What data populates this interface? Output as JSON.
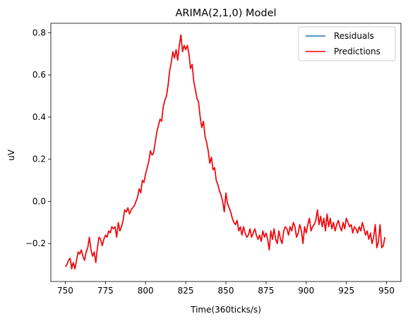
{
  "chart_data": {
    "type": "line",
    "title": "ARIMA(2,1,0) Model",
    "xlabel": "Time(360ticks/s)",
    "ylabel": "uV",
    "xlim": [
      741,
      959
    ],
    "ylim": [
      -0.38,
      0.845
    ],
    "x_ticks": [
      750,
      775,
      800,
      825,
      850,
      875,
      900,
      925,
      950
    ],
    "y_ticks": [
      -0.2,
      0.0,
      0.2,
      0.4,
      0.6,
      0.8
    ],
    "x_tick_labels": [
      "750",
      "775",
      "800",
      "825",
      "850",
      "875",
      "900",
      "925",
      "950"
    ],
    "y_tick_labels": [
      "−0.2",
      "0.0",
      "0.2",
      "0.4",
      "0.6",
      "0.8"
    ],
    "grid": false,
    "legend_position": "top-right",
    "series": [
      {
        "name": "Residuals",
        "color": "#1f77b4",
        "x": [
          750,
          751,
          752,
          753,
          754,
          755,
          756,
          757,
          758,
          759,
          760,
          761,
          762,
          763,
          764,
          765,
          766,
          767,
          768,
          769,
          770,
          771,
          772,
          773,
          774,
          775,
          776,
          777,
          778,
          779,
          780,
          781,
          782,
          783,
          784,
          785,
          786,
          787,
          788,
          789,
          790,
          791,
          792,
          793,
          794,
          795,
          796,
          797,
          798,
          799,
          800,
          801,
          802,
          803,
          804,
          805,
          806,
          807,
          808,
          809,
          810,
          811,
          812,
          813,
          814,
          815,
          816,
          817,
          818,
          819,
          820,
          821,
          822,
          823,
          824,
          825,
          826,
          827,
          828,
          829,
          830,
          831,
          832,
          833,
          834,
          835,
          836,
          837,
          838,
          839,
          840,
          841,
          842,
          843,
          844,
          845,
          846,
          847,
          848,
          849,
          850,
          851,
          852,
          853,
          854,
          855,
          856,
          857,
          858,
          859,
          860,
          861,
          862,
          863,
          864,
          865,
          866,
          867,
          868,
          869,
          870,
          871,
          872,
          873,
          874,
          875,
          876,
          877,
          878,
          879,
          880,
          881,
          882,
          883,
          884,
          885,
          886,
          887,
          888,
          889,
          890,
          891,
          892,
          893,
          894,
          895,
          896,
          897,
          898,
          899,
          900,
          901,
          902,
          903,
          904,
          905,
          906,
          907,
          908,
          909,
          910,
          911,
          912,
          913,
          914,
          915,
          916,
          917,
          918,
          919,
          920,
          921,
          922,
          923,
          924,
          925,
          926,
          927,
          928,
          929,
          930,
          931,
          932,
          933,
          934,
          935,
          936,
          937,
          938,
          939,
          940,
          941,
          942,
          943,
          944,
          945,
          946,
          947,
          948,
          949
        ],
        "y": [
          -0.31,
          -0.3,
          -0.28,
          -0.27,
          -0.31,
          -0.29,
          -0.32,
          -0.28,
          -0.24,
          -0.25,
          -0.23,
          -0.26,
          -0.28,
          -0.24,
          -0.22,
          -0.17,
          -0.23,
          -0.26,
          -0.24,
          -0.29,
          -0.22,
          -0.17,
          -0.18,
          -0.21,
          -0.18,
          -0.16,
          -0.17,
          -0.14,
          -0.15,
          -0.12,
          -0.13,
          -0.12,
          -0.17,
          -0.1,
          -0.14,
          -0.12,
          -0.09,
          -0.04,
          -0.05,
          -0.03,
          -0.06,
          -0.04,
          -0.03,
          -0.02,
          0.0,
          0.02,
          0.06,
          0.04,
          0.1,
          0.09,
          0.13,
          0.16,
          0.19,
          0.24,
          0.22,
          0.23,
          0.28,
          0.33,
          0.36,
          0.39,
          0.38,
          0.45,
          0.48,
          0.5,
          0.55,
          0.62,
          0.66,
          0.71,
          0.68,
          0.72,
          0.67,
          0.74,
          0.79,
          0.71,
          0.74,
          0.72,
          0.74,
          0.7,
          0.63,
          0.65,
          0.57,
          0.53,
          0.49,
          0.47,
          0.4,
          0.35,
          0.38,
          0.31,
          0.28,
          0.24,
          0.18,
          0.21,
          0.15,
          0.16,
          0.1,
          0.08,
          0.05,
          0.03,
          0.0,
          -0.05,
          0.04,
          -0.01,
          -0.03,
          -0.05,
          -0.08,
          -0.1,
          -0.11,
          -0.09,
          -0.14,
          -0.12,
          -0.16,
          -0.12,
          -0.15,
          -0.17,
          -0.16,
          -0.13,
          -0.17,
          -0.15,
          -0.13,
          -0.16,
          -0.18,
          -0.16,
          -0.19,
          -0.14,
          -0.17,
          -0.15,
          -0.18,
          -0.23,
          -0.14,
          -0.18,
          -0.13,
          -0.18,
          -0.2,
          -0.14,
          -0.18,
          -0.2,
          -0.14,
          -0.12,
          -0.13,
          -0.16,
          -0.12,
          -0.14,
          -0.1,
          -0.12,
          -0.17,
          -0.15,
          -0.11,
          -0.14,
          -0.2,
          -0.12,
          -0.15,
          -0.11,
          -0.08,
          -0.14,
          -0.12,
          -0.11,
          -0.09,
          -0.04,
          -0.11,
          -0.07,
          -0.12,
          -0.08,
          -0.14,
          -0.06,
          -0.12,
          -0.08,
          -0.13,
          -0.1,
          -0.14,
          -0.11,
          -0.09,
          -0.12,
          -0.14,
          -0.1,
          -0.13,
          -0.08,
          -0.1,
          -0.12,
          -0.11,
          -0.15,
          -0.12,
          -0.13,
          -0.15,
          -0.12,
          -0.14,
          -0.1,
          -0.13,
          -0.16,
          -0.14,
          -0.18,
          -0.15,
          -0.2,
          -0.17,
          -0.11,
          -0.22,
          -0.19,
          -0.11,
          -0.22,
          -0.21,
          -0.17
        ]
      },
      {
        "name": "Predictions",
        "color": "#ff0000",
        "x": [
          750,
          751,
          752,
          753,
          754,
          755,
          756,
          757,
          758,
          759,
          760,
          761,
          762,
          763,
          764,
          765,
          766,
          767,
          768,
          769,
          770,
          771,
          772,
          773,
          774,
          775,
          776,
          777,
          778,
          779,
          780,
          781,
          782,
          783,
          784,
          785,
          786,
          787,
          788,
          789,
          790,
          791,
          792,
          793,
          794,
          795,
          796,
          797,
          798,
          799,
          800,
          801,
          802,
          803,
          804,
          805,
          806,
          807,
          808,
          809,
          810,
          811,
          812,
          813,
          814,
          815,
          816,
          817,
          818,
          819,
          820,
          821,
          822,
          823,
          824,
          825,
          826,
          827,
          828,
          829,
          830,
          831,
          832,
          833,
          834,
          835,
          836,
          837,
          838,
          839,
          840,
          841,
          842,
          843,
          844,
          845,
          846,
          847,
          848,
          849,
          850,
          851,
          852,
          853,
          854,
          855,
          856,
          857,
          858,
          859,
          860,
          861,
          862,
          863,
          864,
          865,
          866,
          867,
          868,
          869,
          870,
          871,
          872,
          873,
          874,
          875,
          876,
          877,
          878,
          879,
          880,
          881,
          882,
          883,
          884,
          885,
          886,
          887,
          888,
          889,
          890,
          891,
          892,
          893,
          894,
          895,
          896,
          897,
          898,
          899,
          900,
          901,
          902,
          903,
          904,
          905,
          906,
          907,
          908,
          909,
          910,
          911,
          912,
          913,
          914,
          915,
          916,
          917,
          918,
          919,
          920,
          921,
          922,
          923,
          924,
          925,
          926,
          927,
          928,
          929,
          930,
          931,
          932,
          933,
          934,
          935,
          936,
          937,
          938,
          939,
          940,
          941,
          942,
          943,
          944,
          945,
          946,
          947,
          948,
          949
        ],
        "y": [
          -0.31,
          -0.3,
          -0.28,
          -0.27,
          -0.32,
          -0.29,
          -0.32,
          -0.28,
          -0.24,
          -0.25,
          -0.23,
          -0.26,
          -0.28,
          -0.24,
          -0.22,
          -0.17,
          -0.23,
          -0.26,
          -0.24,
          -0.29,
          -0.22,
          -0.17,
          -0.18,
          -0.21,
          -0.18,
          -0.16,
          -0.17,
          -0.14,
          -0.15,
          -0.12,
          -0.13,
          -0.12,
          -0.17,
          -0.1,
          -0.14,
          -0.12,
          -0.09,
          -0.04,
          -0.05,
          -0.03,
          -0.06,
          -0.04,
          -0.03,
          -0.02,
          0.0,
          0.02,
          0.06,
          0.04,
          0.1,
          0.09,
          0.13,
          0.16,
          0.19,
          0.24,
          0.22,
          0.23,
          0.28,
          0.33,
          0.36,
          0.39,
          0.38,
          0.45,
          0.48,
          0.5,
          0.55,
          0.62,
          0.66,
          0.71,
          0.68,
          0.72,
          0.67,
          0.74,
          0.79,
          0.71,
          0.74,
          0.72,
          0.74,
          0.7,
          0.63,
          0.65,
          0.57,
          0.53,
          0.49,
          0.47,
          0.4,
          0.35,
          0.38,
          0.31,
          0.28,
          0.24,
          0.18,
          0.21,
          0.15,
          0.16,
          0.1,
          0.08,
          0.05,
          0.03,
          0.0,
          -0.05,
          0.04,
          -0.01,
          -0.03,
          -0.05,
          -0.08,
          -0.1,
          -0.11,
          -0.09,
          -0.14,
          -0.12,
          -0.16,
          -0.12,
          -0.15,
          -0.17,
          -0.16,
          -0.13,
          -0.17,
          -0.15,
          -0.13,
          -0.16,
          -0.18,
          -0.16,
          -0.19,
          -0.14,
          -0.17,
          -0.15,
          -0.18,
          -0.23,
          -0.14,
          -0.18,
          -0.13,
          -0.18,
          -0.2,
          -0.14,
          -0.18,
          -0.2,
          -0.14,
          -0.12,
          -0.13,
          -0.16,
          -0.12,
          -0.14,
          -0.1,
          -0.12,
          -0.17,
          -0.15,
          -0.11,
          -0.14,
          -0.2,
          -0.12,
          -0.15,
          -0.11,
          -0.08,
          -0.14,
          -0.12,
          -0.11,
          -0.09,
          -0.04,
          -0.11,
          -0.07,
          -0.12,
          -0.08,
          -0.14,
          -0.06,
          -0.12,
          -0.08,
          -0.13,
          -0.1,
          -0.14,
          -0.11,
          -0.09,
          -0.12,
          -0.14,
          -0.1,
          -0.13,
          -0.08,
          -0.1,
          -0.12,
          -0.11,
          -0.15,
          -0.12,
          -0.13,
          -0.15,
          -0.12,
          -0.14,
          -0.1,
          -0.13,
          -0.16,
          -0.14,
          -0.18,
          -0.15,
          -0.2,
          -0.17,
          -0.11,
          -0.22,
          -0.19,
          -0.11,
          -0.22,
          -0.21,
          -0.17
        ]
      }
    ]
  }
}
